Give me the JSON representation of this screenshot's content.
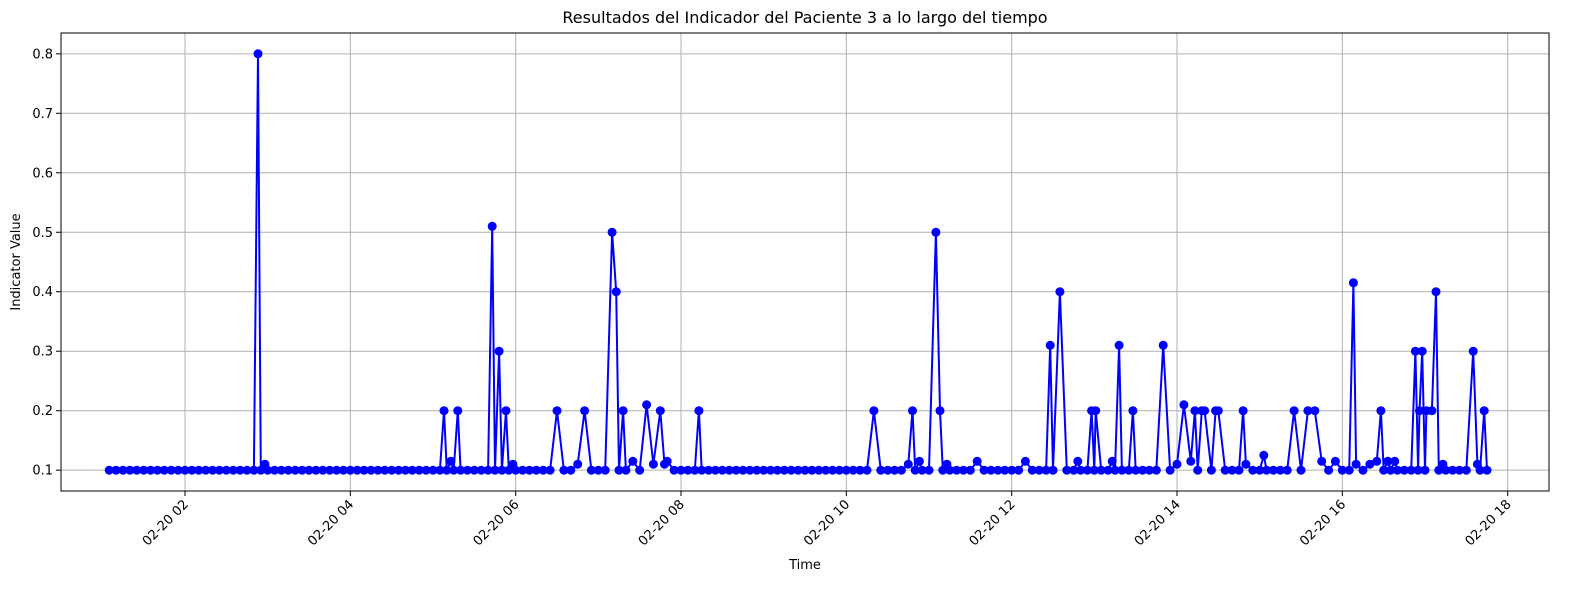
{
  "chart_data": {
    "type": "line",
    "title": "Resultados del Indicador del Paciente 3 a lo largo del tiempo",
    "xlabel": "Time",
    "ylabel": "Indicator Value",
    "x_tick_labels": [
      "02-20 02",
      "02-20 04",
      "02-20 06",
      "02-20 08",
      "02-20 10",
      "02-20 12",
      "02-20 14",
      "02-20 16",
      "02-20 18"
    ],
    "y_tick_labels": [
      "0.1",
      "0.2",
      "0.3",
      "0.4",
      "0.5",
      "0.6",
      "0.7",
      "0.8"
    ],
    "xlim": [
      "02-20 00:30",
      "02-20 18:30"
    ],
    "ylim": [
      0.065,
      0.835
    ],
    "grid": true,
    "line_color": "#0000ff",
    "marker": "circle",
    "baseline_value": 0.1,
    "x_range_of_points": [
      "02-20 01:05",
      "02-20 17:45"
    ],
    "series": [
      {
        "x": [
          "02-20 02:53",
          "02-20 02:58",
          "02-20 05:08",
          "02-20 05:13",
          "02-20 05:18",
          "02-20 05:43",
          "02-20 05:48",
          "02-20 05:53",
          "02-20 05:58",
          "02-20 06:30",
          "02-20 06:45",
          "02-20 06:50",
          "02-20 07:10",
          "02-20 07:13",
          "02-20 07:18",
          "02-20 07:25",
          "02-20 07:35",
          "02-20 07:40",
          "02-20 07:45",
          "02-20 07:48",
          "02-20 07:50",
          "02-20 08:13",
          "02-20 10:20",
          "02-20 10:45",
          "02-20 10:48",
          "02-20 10:53",
          "02-20 11:05",
          "02-20 11:08",
          "02-20 11:13",
          "02-20 11:35",
          "02-20 12:10",
          "02-20 12:28",
          "02-20 12:35",
          "02-20 12:48",
          "02-20 12:58",
          "02-20 13:01",
          "02-20 13:13",
          "02-20 13:18",
          "02-20 13:28",
          "02-20 13:50",
          "02-20 14:00",
          "02-20 14:05",
          "02-20 14:10",
          "02-20 14:13",
          "02-20 14:18",
          "02-20 14:20",
          "02-20 14:28",
          "02-20 14:30",
          "02-20 14:48",
          "02-20 14:50",
          "02-20 15:03",
          "02-20 15:25",
          "02-20 15:35",
          "02-20 15:40",
          "02-20 15:45",
          "02-20 15:55",
          "02-20 16:08",
          "02-20 16:10",
          "02-20 16:20",
          "02-20 16:25",
          "02-20 16:28",
          "02-20 16:33",
          "02-20 16:38",
          "02-20 16:53",
          "02-20 16:56",
          "02-20 16:58",
          "02-20 17:01",
          "02-20 17:05",
          "02-20 17:08",
          "02-20 17:13",
          "02-20 17:35",
          "02-20 17:38",
          "02-20 17:43"
        ],
        "values": [
          0.8,
          0.11,
          0.2,
          0.115,
          0.2,
          0.51,
          0.3,
          0.2,
          0.11,
          0.2,
          0.11,
          0.2,
          0.5,
          0.4,
          0.2,
          0.115,
          0.21,
          0.11,
          0.2,
          0.11,
          0.115,
          0.2,
          0.2,
          0.11,
          0.2,
          0.115,
          0.5,
          0.2,
          0.11,
          0.115,
          0.115,
          0.31,
          0.4,
          0.115,
          0.2,
          0.2,
          0.115,
          0.31,
          0.2,
          0.31,
          0.11,
          0.21,
          0.115,
          0.2,
          0.2,
          0.2,
          0.2,
          0.2,
          0.2,
          0.11,
          0.125,
          0.2,
          0.2,
          0.2,
          0.115,
          0.115,
          0.415,
          0.11,
          0.11,
          0.115,
          0.2,
          0.115,
          0.115,
          0.3,
          0.2,
          0.3,
          0.2,
          0.2,
          0.4,
          0.11,
          0.3,
          0.11,
          0.2
        ]
      }
    ]
  }
}
